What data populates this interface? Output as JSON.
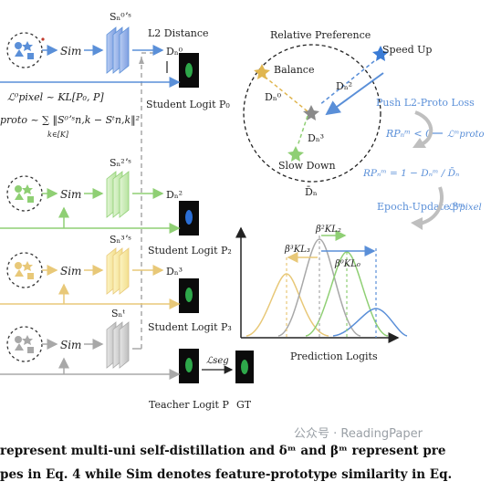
{
  "caption": {
    "line1": "represent multi-uni self-distillation and δᵐ and βᵐ represent pre",
    "line2": "pes in Eq. 4 while Sim denotes feature-prototype similarity in Eq."
  },
  "watermark": "公众号 · ReadingPaper",
  "colors": {
    "blue": "#5a8fd8",
    "green": "#8fcf74",
    "yellow": "#e8c878",
    "gray": "#a8a8a8",
    "dark": "#222222"
  },
  "branches": {
    "top": {
      "sim": "Sim",
      "proto": "Sₙ⁰ʼˢ",
      "dist": "Dₙ⁰",
      "logit": "Student Logit P₀"
    },
    "green": {
      "sim": "Sim",
      "proto": "Sₙ²ʼˢ",
      "dist": "Dₙ²",
      "logit": "Student Logit P₂"
    },
    "yellow": {
      "sim": "Sim",
      "proto": "Sₙ³ʼˢ",
      "dist": "Dₙ³",
      "logit": "Student Logit P₃"
    },
    "gray": {
      "sim": "Sim",
      "proto": "Sₙᵗ",
      "teacher": "Teacher Logit P",
      "gt": "GT",
      "seg": "ℒseg"
    }
  },
  "labels": {
    "l2_distance": "L2 Distance",
    "loss_pixel": "ℒ⁰pixel ~ KL[P₀, P]",
    "loss_proto": "proto ~ ∑ ‖S⁰ʼˢn,k − Sᵗn,k‖²",
    "loss_proto_sub": "k∈[K]"
  },
  "preference": {
    "title": "Relative Preference",
    "speed_up": "Speed Up",
    "balance": "Balance",
    "slow_down": "Slow Down",
    "d0": "Dₙ⁰",
    "d2": "Dₙ²",
    "d3": "Dₙ³",
    "dbar": "D̄ₙ",
    "push": "Push L2-Proto Loss",
    "rp_cond": "RPₙᵐ < 0",
    "rp_eq": "RPₙᵐ = 1 − Dₙᵐ / D̄ₙ",
    "epoch": "Epoch-Update βᵐ",
    "lproto": "ℒᵐproto",
    "lpixel": "ℒᵐpixel"
  },
  "logits": {
    "axis_label": "Prediction Logits",
    "b3": "β³KL₃",
    "b2": "β²KL₂",
    "b0": "β⁰KL₀"
  }
}
